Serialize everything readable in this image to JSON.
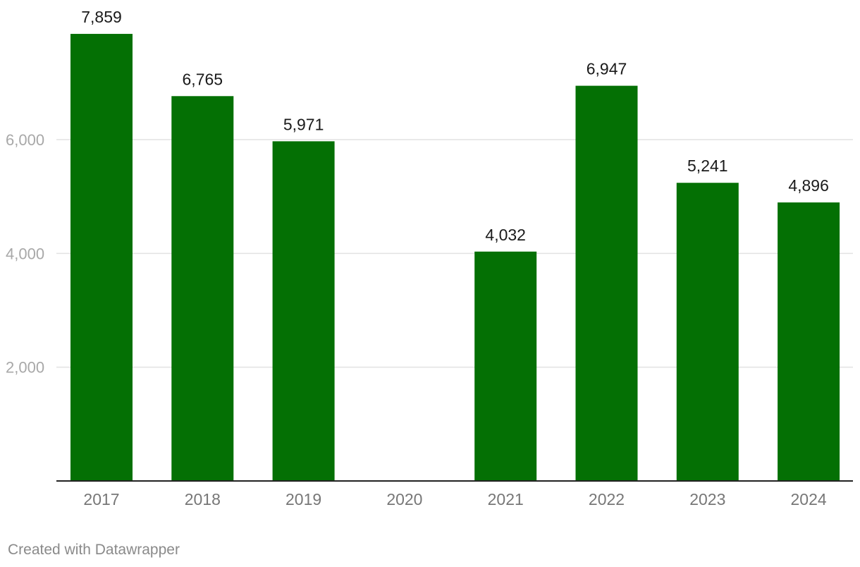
{
  "chart_data": {
    "type": "bar",
    "categories": [
      "2017",
      "2018",
      "2019",
      "2020",
      "2021",
      "2022",
      "2023",
      "2024"
    ],
    "values": [
      7859,
      6765,
      5971,
      null,
      4032,
      6947,
      5241,
      4896
    ],
    "data_labels": [
      "7,859",
      "6,765",
      "5,971",
      "",
      "4,032",
      "6,947",
      "5,241",
      "4,896"
    ],
    "yticks": [
      2000,
      4000,
      6000
    ],
    "ytick_labels": [
      "2,000",
      "4,000",
      "6,000"
    ],
    "ylim": [
      0,
      8000
    ],
    "grid": true,
    "bar_color": "#047004",
    "title": "",
    "xlabel": "",
    "ylabel": ""
  },
  "footer": {
    "credit": "Created with Datawrapper"
  }
}
